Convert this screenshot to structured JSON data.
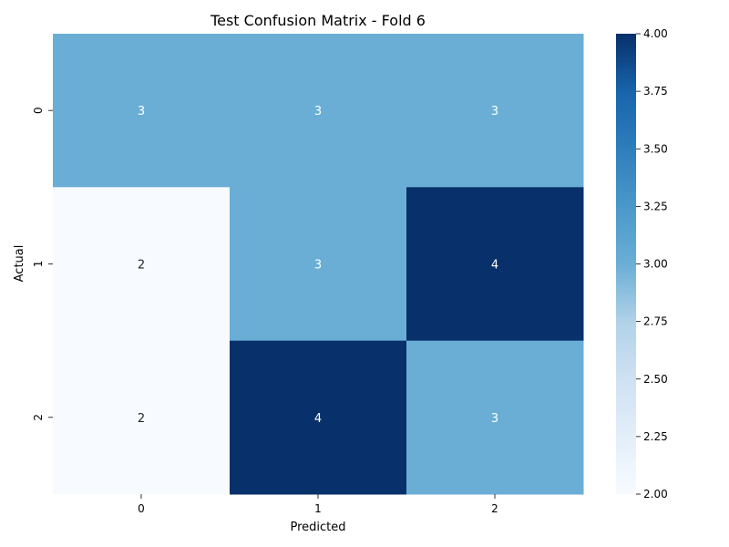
{
  "chart_data": {
    "type": "heatmap",
    "title": "Test Confusion Matrix - Fold 6",
    "xlabel": "Predicted",
    "ylabel": "Actual",
    "x_categories": [
      "0",
      "1",
      "2"
    ],
    "y_categories": [
      "0",
      "1",
      "2"
    ],
    "values": [
      [
        3,
        3,
        3
      ],
      [
        2,
        3,
        4
      ],
      [
        2,
        4,
        3
      ]
    ],
    "colormap": "Blues",
    "colorbar": {
      "range": [
        2.0,
        4.0
      ],
      "ticks": [
        "2.00",
        "2.25",
        "2.50",
        "2.75",
        "3.00",
        "3.25",
        "3.50",
        "3.75",
        "4.00"
      ],
      "tick_values": [
        2.0,
        2.25,
        2.5,
        2.75,
        3.0,
        3.25,
        3.5,
        3.75,
        4.0
      ]
    },
    "annotations": true,
    "grid": false
  }
}
